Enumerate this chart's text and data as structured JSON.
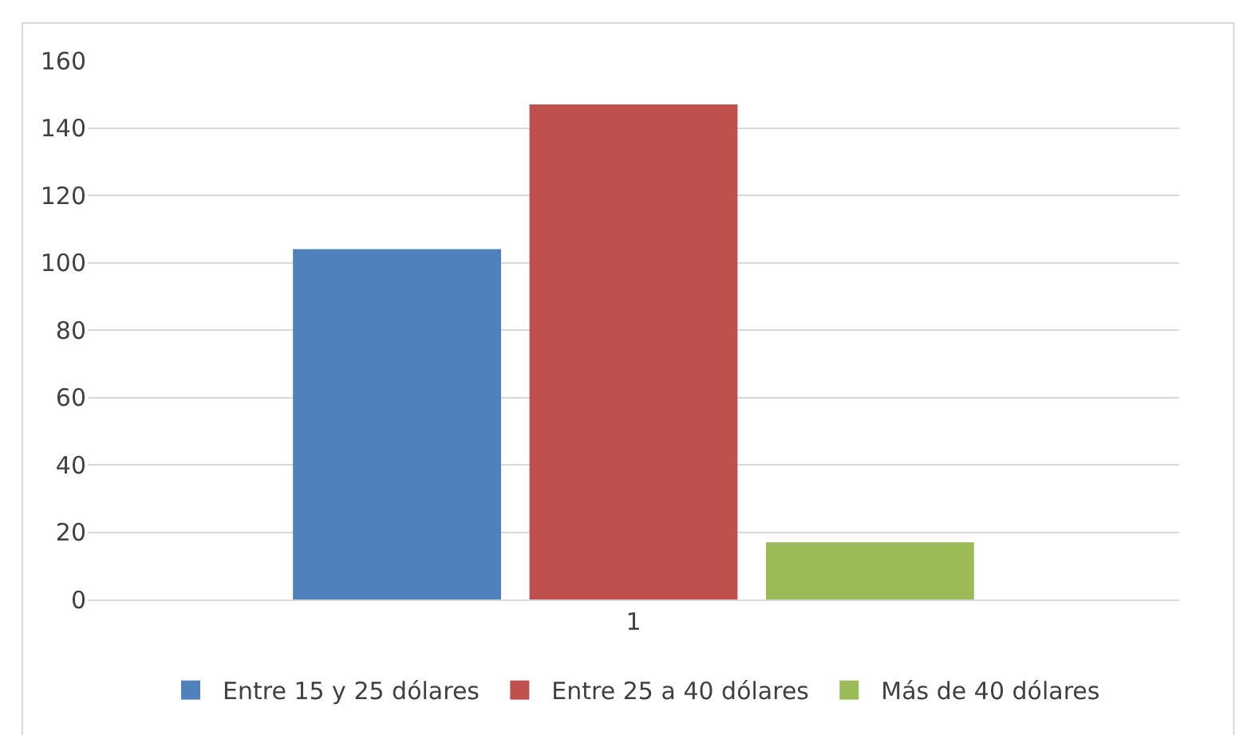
{
  "chart_data": {
    "type": "bar",
    "categories": [
      "1"
    ],
    "series": [
      {
        "name": "Entre 15 y 25 dólares",
        "color": "#4f81bd",
        "values": [
          104
        ]
      },
      {
        "name": "Entre 25 a 40 dólares",
        "color": "#c0504d",
        "values": [
          147
        ]
      },
      {
        "name": "Más de 40 dólares",
        "color": "#9bbb59",
        "values": [
          17
        ]
      }
    ],
    "ylim": [
      0,
      160
    ],
    "yticks": [
      0,
      20,
      40,
      60,
      80,
      100,
      120,
      140,
      160
    ],
    "grid": "y",
    "legend": "bottom"
  }
}
